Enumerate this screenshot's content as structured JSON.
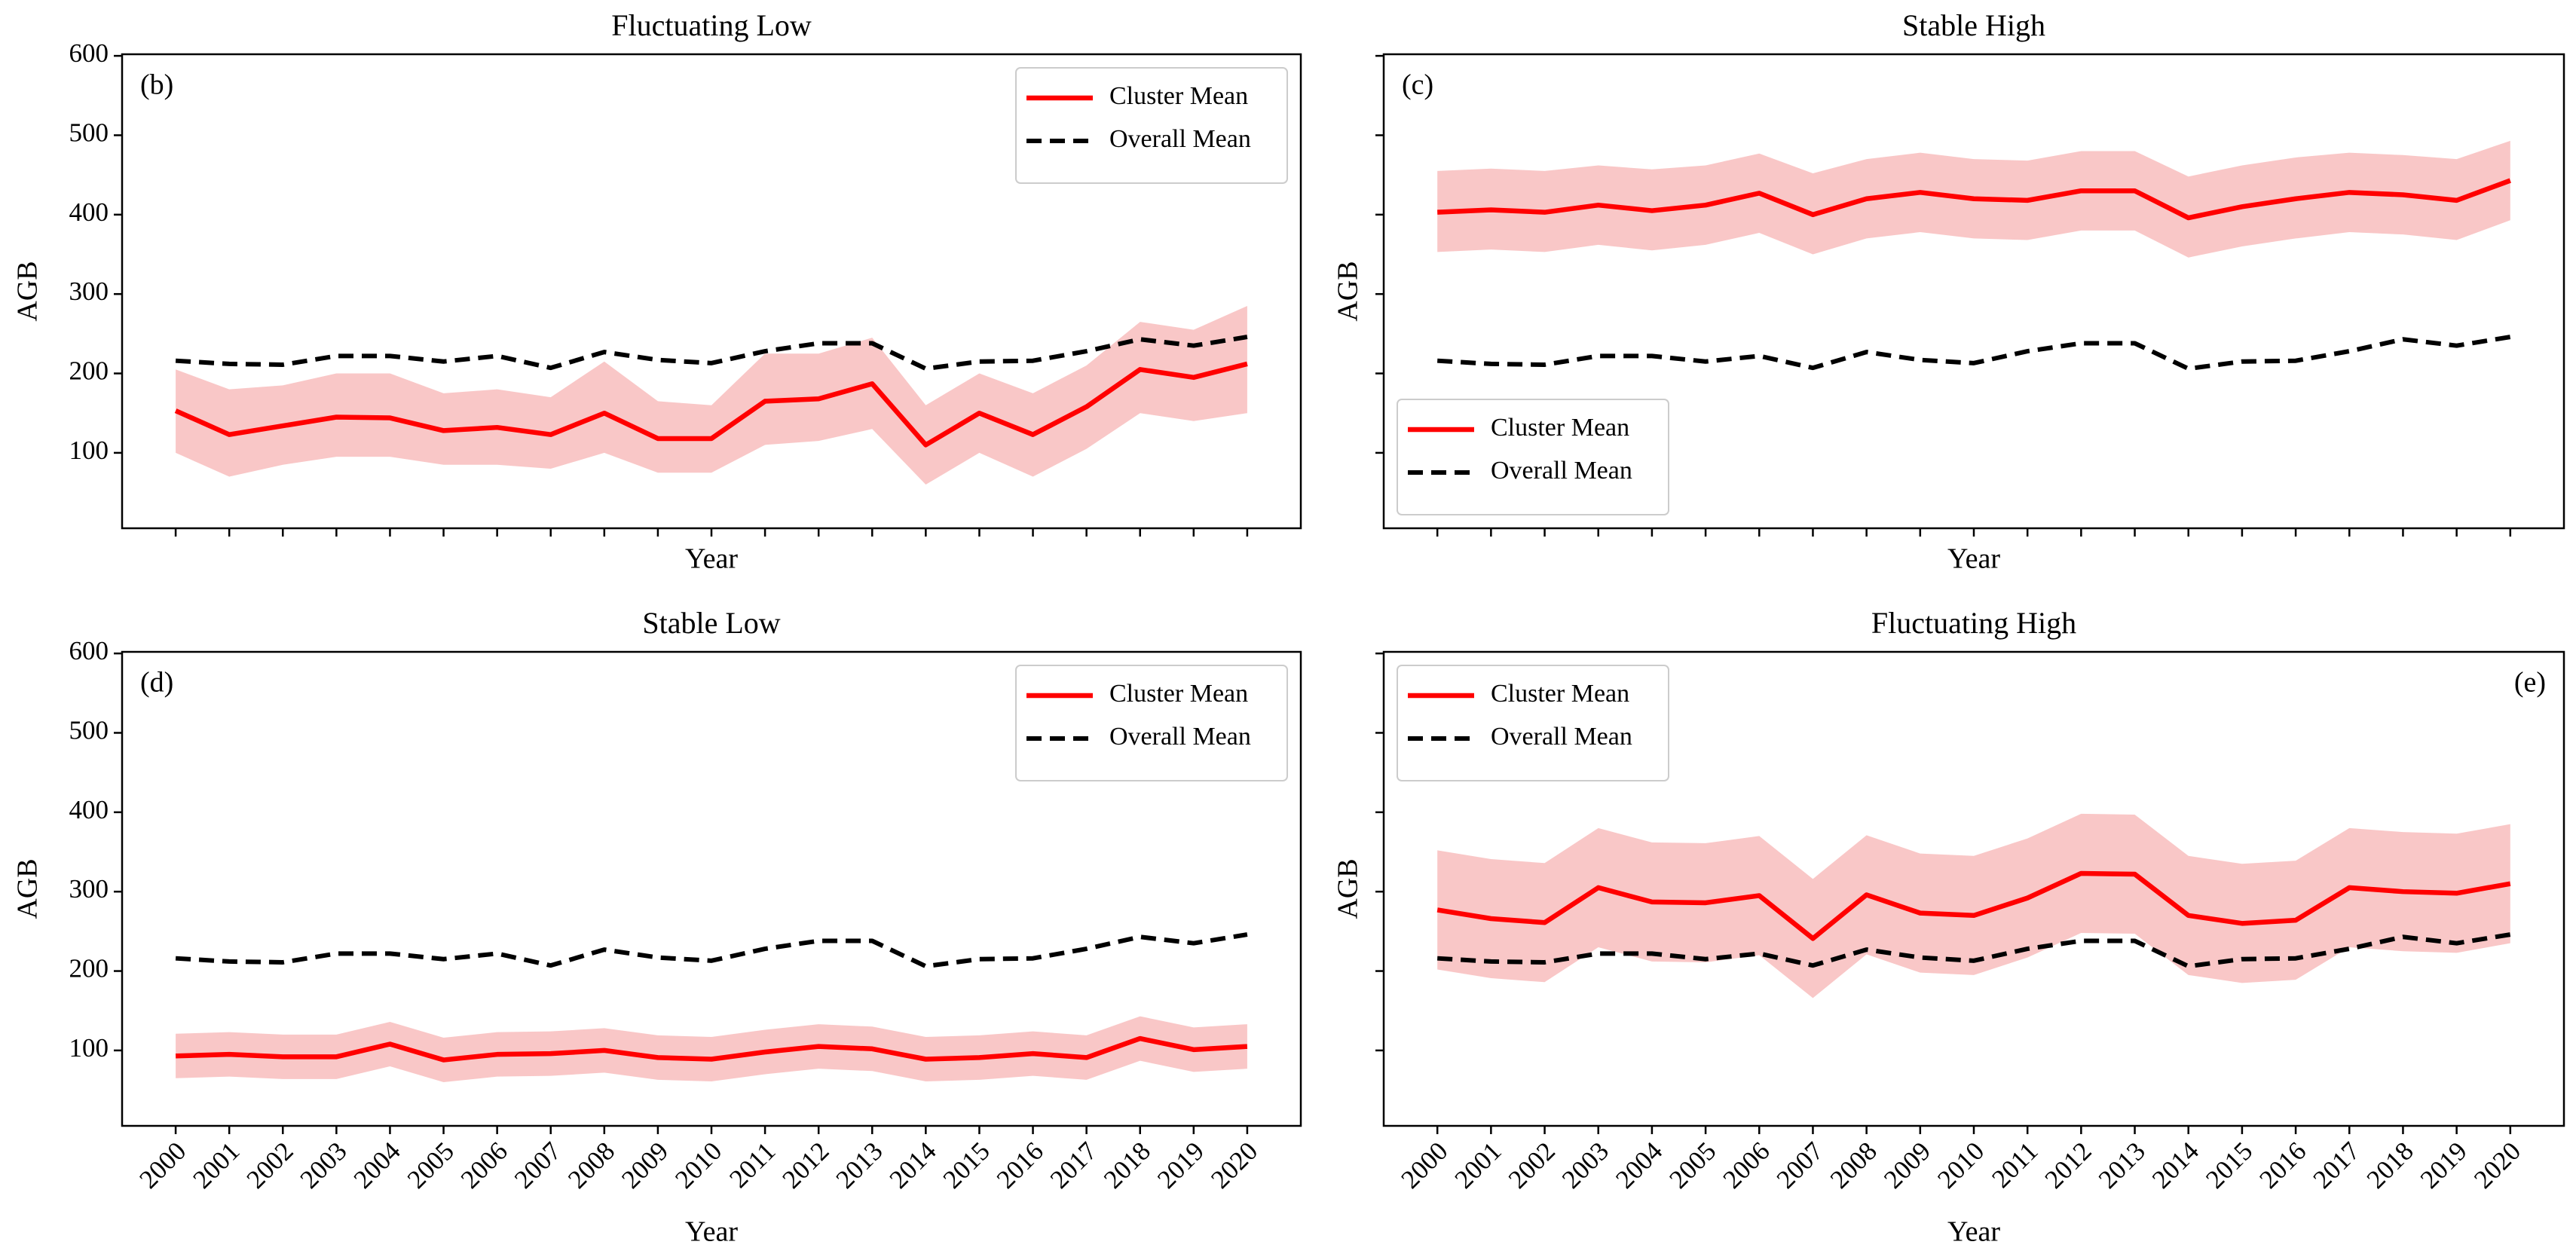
{
  "chart_data": [
    {
      "type": "line",
      "title": "Fluctuating Low",
      "panel_label": "(b)",
      "xlabel": "Year",
      "ylabel": "AGB",
      "x": [
        2000,
        2001,
        2002,
        2003,
        2004,
        2005,
        2006,
        2007,
        2008,
        2009,
        2010,
        2011,
        2012,
        2013,
        2014,
        2015,
        2016,
        2017,
        2018,
        2019,
        2020
      ],
      "xlim": [
        1999,
        2021
      ],
      "xticks": [
        2000,
        2001,
        2002,
        2003,
        2004,
        2005,
        2006,
        2007,
        2008,
        2009,
        2010,
        2011,
        2012,
        2013,
        2014,
        2015,
        2016,
        2017,
        2018,
        2019,
        2020
      ],
      "show_xticklabels": false,
      "ylim": [
        5,
        602
      ],
      "yticks": [
        100,
        200,
        300,
        400,
        500,
        600
      ],
      "show_yticklabels": true,
      "legend_loc": "upper right",
      "panel_label_loc": "upper left",
      "band": {
        "color": "#f7b9b9",
        "lower": [
          100,
          70,
          85,
          95,
          95,
          85,
          85,
          80,
          100,
          75,
          75,
          110,
          115,
          130,
          60,
          100,
          70,
          105,
          150,
          140,
          150
        ],
        "upper": [
          205,
          180,
          185,
          200,
          200,
          175,
          180,
          170,
          215,
          165,
          160,
          225,
          225,
          245,
          160,
          200,
          175,
          210,
          265,
          255,
          285
        ]
      },
      "series": [
        {
          "name": "Cluster Mean",
          "color": "#ff0000",
          "dashed": false,
          "values": [
            153,
            123,
            134,
            145,
            144,
            128,
            132,
            123,
            150,
            118,
            118,
            165,
            168,
            187,
            110,
            150,
            123,
            158,
            205,
            195,
            212
          ]
        },
        {
          "name": "Overall Mean",
          "color": "#000000",
          "dashed": true,
          "values": [
            216,
            212,
            211,
            222,
            222,
            215,
            222,
            207,
            227,
            217,
            213,
            228,
            238,
            238,
            206,
            215,
            216,
            228,
            243,
            235,
            246
          ]
        }
      ]
    },
    {
      "type": "line",
      "title": "Stable High",
      "panel_label": "(c)",
      "xlabel": "Year",
      "ylabel": "AGB",
      "x": [
        2000,
        2001,
        2002,
        2003,
        2004,
        2005,
        2006,
        2007,
        2008,
        2009,
        2010,
        2011,
        2012,
        2013,
        2014,
        2015,
        2016,
        2017,
        2018,
        2019,
        2020
      ],
      "xlim": [
        1999,
        2021
      ],
      "xticks": [
        2000,
        2001,
        2002,
        2003,
        2004,
        2005,
        2006,
        2007,
        2008,
        2009,
        2010,
        2011,
        2012,
        2013,
        2014,
        2015,
        2016,
        2017,
        2018,
        2019,
        2020
      ],
      "show_xticklabels": false,
      "ylim": [
        5,
        602
      ],
      "yticks": [
        100,
        200,
        300,
        400,
        500,
        600
      ],
      "show_yticklabels": false,
      "legend_loc": "lower left",
      "panel_label_loc": "upper left",
      "band": {
        "color": "#f7b9b9",
        "lower": [
          353,
          356,
          353,
          362,
          355,
          362,
          377,
          350,
          370,
          378,
          370,
          368,
          380,
          380,
          346,
          360,
          370,
          378,
          375,
          368,
          393
        ],
        "upper": [
          455,
          458,
          455,
          462,
          457,
          462,
          477,
          452,
          470,
          478,
          470,
          468,
          480,
          480,
          448,
          462,
          472,
          478,
          475,
          470,
          493
        ]
      },
      "series": [
        {
          "name": "Cluster Mean",
          "color": "#ff0000",
          "dashed": false,
          "values": [
            403,
            406,
            403,
            412,
            405,
            412,
            427,
            400,
            420,
            428,
            420,
            418,
            430,
            430,
            396,
            410,
            420,
            428,
            425,
            418,
            443
          ]
        },
        {
          "name": "Overall Mean",
          "color": "#000000",
          "dashed": true,
          "values": [
            216,
            212,
            211,
            222,
            222,
            215,
            222,
            207,
            227,
            217,
            213,
            228,
            238,
            238,
            206,
            215,
            216,
            228,
            243,
            235,
            246
          ]
        }
      ]
    },
    {
      "type": "line",
      "title": "Stable Low",
      "panel_label": "(d)",
      "xlabel": "Year",
      "ylabel": "AGB",
      "x": [
        2000,
        2001,
        2002,
        2003,
        2004,
        2005,
        2006,
        2007,
        2008,
        2009,
        2010,
        2011,
        2012,
        2013,
        2014,
        2015,
        2016,
        2017,
        2018,
        2019,
        2020
      ],
      "xlim": [
        1999,
        2021
      ],
      "xticks": [
        2000,
        2001,
        2002,
        2003,
        2004,
        2005,
        2006,
        2007,
        2008,
        2009,
        2010,
        2011,
        2012,
        2013,
        2014,
        2015,
        2016,
        2017,
        2018,
        2019,
        2020
      ],
      "show_xticklabels": true,
      "ylim": [
        5,
        602
      ],
      "yticks": [
        100,
        200,
        300,
        400,
        500,
        600
      ],
      "show_yticklabels": true,
      "legend_loc": "upper right",
      "panel_label_loc": "upper left",
      "band": {
        "color": "#f7b9b9",
        "lower": [
          65,
          67,
          64,
          64,
          80,
          60,
          67,
          68,
          72,
          63,
          61,
          70,
          77,
          74,
          61,
          63,
          68,
          63,
          87,
          73,
          77
        ],
        "upper": [
          121,
          123,
          120,
          120,
          136,
          116,
          123,
          124,
          128,
          119,
          117,
          126,
          133,
          130,
          117,
          119,
          124,
          119,
          143,
          129,
          133
        ]
      },
      "series": [
        {
          "name": "Cluster Mean",
          "color": "#ff0000",
          "dashed": false,
          "values": [
            93,
            95,
            92,
            92,
            108,
            88,
            95,
            96,
            100,
            91,
            89,
            98,
            105,
            102,
            89,
            91,
            96,
            91,
            115,
            101,
            105
          ]
        },
        {
          "name": "Overall Mean",
          "color": "#000000",
          "dashed": true,
          "values": [
            216,
            212,
            211,
            222,
            222,
            215,
            222,
            207,
            227,
            217,
            213,
            228,
            238,
            238,
            206,
            215,
            216,
            228,
            243,
            235,
            246
          ]
        }
      ]
    },
    {
      "type": "line",
      "title": "Fluctuating High",
      "panel_label": "(e)",
      "xlabel": "Year",
      "ylabel": "AGB",
      "x": [
        2000,
        2001,
        2002,
        2003,
        2004,
        2005,
        2006,
        2007,
        2008,
        2009,
        2010,
        2011,
        2012,
        2013,
        2014,
        2015,
        2016,
        2017,
        2018,
        2019,
        2020
      ],
      "xlim": [
        1999,
        2021
      ],
      "xticks": [
        2000,
        2001,
        2002,
        2003,
        2004,
        2005,
        2006,
        2007,
        2008,
        2009,
        2010,
        2011,
        2012,
        2013,
        2014,
        2015,
        2016,
        2017,
        2018,
        2019,
        2020
      ],
      "show_xticklabels": true,
      "ylim": [
        5,
        602
      ],
      "yticks": [
        100,
        200,
        300,
        400,
        500,
        600
      ],
      "show_yticklabels": false,
      "legend_loc": "upper left",
      "panel_label_loc": "upper right",
      "band": {
        "color": "#f7b9b9",
        "lower": [
          202,
          191,
          186,
          230,
          212,
          211,
          220,
          166,
          221,
          198,
          195,
          217,
          248,
          247,
          195,
          185,
          189,
          230,
          225,
          223,
          235
        ],
        "upper": [
          352,
          341,
          336,
          380,
          362,
          361,
          370,
          316,
          371,
          348,
          345,
          367,
          398,
          397,
          345,
          335,
          339,
          380,
          375,
          373,
          385
        ]
      },
      "series": [
        {
          "name": "Cluster Mean",
          "color": "#ff0000",
          "dashed": false,
          "values": [
            277,
            266,
            261,
            305,
            287,
            286,
            295,
            241,
            296,
            273,
            270,
            292,
            323,
            322,
            270,
            260,
            264,
            305,
            300,
            298,
            310
          ]
        },
        {
          "name": "Overall Mean",
          "color": "#000000",
          "dashed": true,
          "values": [
            216,
            212,
            211,
            222,
            222,
            215,
            222,
            207,
            227,
            217,
            213,
            228,
            238,
            238,
            206,
            215,
            216,
            228,
            243,
            235,
            246
          ]
        }
      ]
    }
  ]
}
